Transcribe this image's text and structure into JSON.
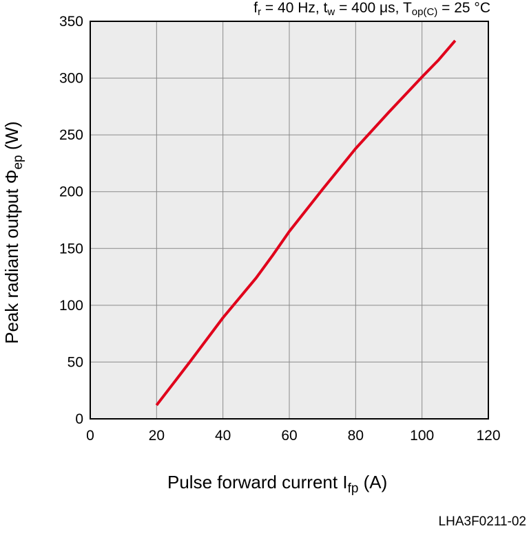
{
  "chart_data": {
    "type": "line",
    "conditions": {
      "fr_sym": "f",
      "fr_sub": "r",
      "fr_text": " = 40 Hz, ",
      "tw_sym": "t",
      "tw_sub": "w",
      "tw_text": " = 400 μs, ",
      "top_sym": "T",
      "top_sub": "op(C)",
      "top_text": " = 25 °C"
    },
    "xlabel": {
      "text": "Pulse forward current I",
      "sub": "fp",
      "unit": " (A)"
    },
    "ylabel": {
      "text": "Peak radiant output Φ",
      "sub": "ep",
      "unit": " (W)"
    },
    "xlim": [
      0,
      120
    ],
    "ylim": [
      0,
      350
    ],
    "xticks": [
      0,
      20,
      40,
      60,
      80,
      100,
      120
    ],
    "yticks": [
      0,
      50,
      100,
      150,
      200,
      250,
      300,
      350
    ],
    "grid": true,
    "series": [
      {
        "color": "#e0001b",
        "x": [
          20,
          30,
          40,
          50,
          55,
          60,
          70,
          80,
          90,
          100,
          105,
          110
        ],
        "y": [
          12,
          50,
          89,
          124,
          144,
          165,
          202,
          238,
          270,
          301,
          316,
          333
        ]
      }
    ]
  },
  "figure_code": "LHA3F0211-02"
}
